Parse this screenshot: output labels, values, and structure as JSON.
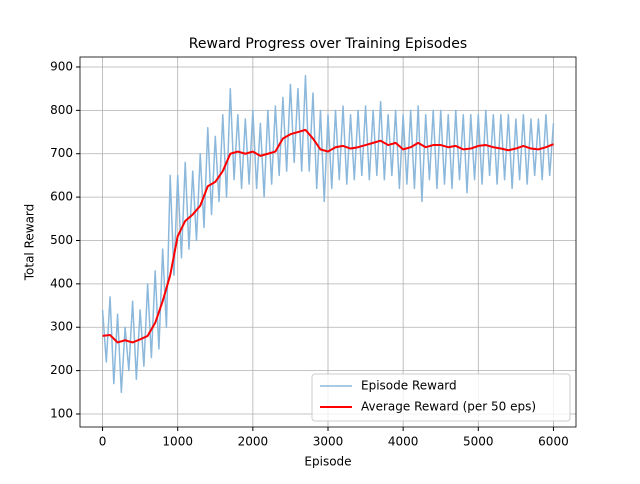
{
  "chart_data": {
    "type": "line",
    "title": "Reward Progress over Training Episodes",
    "x_label": "Episode",
    "y_label": "Total Reward",
    "xlim": [
      -300,
      6300
    ],
    "ylim": [
      70,
      923
    ],
    "xticks": [
      0,
      1000,
      2000,
      3000,
      4000,
      5000,
      6000
    ],
    "yticks": [
      100,
      200,
      300,
      400,
      500,
      600,
      700,
      800,
      900
    ],
    "grid": true,
    "legend": "lower right",
    "series": [
      {
        "name": "Episode Reward",
        "color": "#8cb8dc",
        "width": 1.5,
        "x": [
          0,
          50,
          100,
          150,
          200,
          250,
          300,
          350,
          400,
          450,
          500,
          550,
          600,
          650,
          700,
          750,
          800,
          850,
          900,
          950,
          1000,
          1050,
          1100,
          1150,
          1200,
          1250,
          1300,
          1350,
          1400,
          1450,
          1500,
          1550,
          1600,
          1650,
          1700,
          1750,
          1800,
          1850,
          1900,
          1950,
          2000,
          2050,
          2100,
          2150,
          2200,
          2250,
          2300,
          2350,
          2400,
          2450,
          2500,
          2550,
          2600,
          2650,
          2700,
          2750,
          2800,
          2850,
          2900,
          2950,
          3000,
          3050,
          3100,
          3150,
          3200,
          3250,
          3300,
          3350,
          3400,
          3450,
          3500,
          3550,
          3600,
          3650,
          3700,
          3750,
          3800,
          3850,
          3900,
          3950,
          4000,
          4050,
          4100,
          4150,
          4200,
          4250,
          4300,
          4350,
          4400,
          4450,
          4500,
          4550,
          4600,
          4650,
          4700,
          4750,
          4800,
          4850,
          4900,
          4950,
          5000,
          5050,
          5100,
          5150,
          5200,
          5250,
          5300,
          5350,
          5400,
          5450,
          5500,
          5550,
          5600,
          5650,
          5700,
          5750,
          5800,
          5850,
          5900,
          5950,
          6000
        ],
        "values": [
          340,
          220,
          370,
          170,
          330,
          150,
          300,
          200,
          360,
          180,
          340,
          210,
          400,
          230,
          430,
          250,
          480,
          300,
          650,
          420,
          650,
          460,
          680,
          480,
          660,
          500,
          700,
          530,
          760,
          560,
          740,
          590,
          790,
          600,
          850,
          640,
          790,
          620,
          780,
          630,
          800,
          620,
          770,
          600,
          800,
          630,
          810,
          650,
          830,
          660,
          860,
          680,
          850,
          660,
          880,
          660,
          840,
          620,
          800,
          590,
          790,
          620,
          800,
          640,
          810,
          630,
          790,
          640,
          800,
          650,
          810,
          640,
          800,
          650,
          820,
          640,
          790,
          650,
          800,
          620,
          790,
          630,
          800,
          620,
          810,
          590,
          790,
          640,
          800,
          620,
          800,
          630,
          790,
          620,
          800,
          640,
          790,
          610,
          790,
          640,
          790,
          630,
          800,
          650,
          790,
          630,
          790,
          640,
          790,
          620,
          780,
          640,
          790,
          630,
          780,
          650,
          780,
          640,
          790,
          650,
          770
        ]
      },
      {
        "name": "Average Reward (per 50 eps)",
        "color": "#ff0000",
        "width": 2,
        "x": [
          0,
          100,
          200,
          300,
          400,
          500,
          600,
          700,
          800,
          900,
          1000,
          1100,
          1200,
          1300,
          1400,
          1500,
          1600,
          1700,
          1800,
          1900,
          2000,
          2100,
          2200,
          2300,
          2400,
          2500,
          2600,
          2700,
          2800,
          2900,
          3000,
          3100,
          3200,
          3300,
          3400,
          3500,
          3600,
          3700,
          3800,
          3900,
          4000,
          4100,
          4200,
          4300,
          4400,
          4500,
          4600,
          4700,
          4800,
          4900,
          5000,
          5100,
          5200,
          5300,
          5400,
          5500,
          5600,
          5700,
          5800,
          5900,
          6000
        ],
        "values": [
          280,
          282,
          265,
          270,
          265,
          272,
          280,
          310,
          360,
          420,
          510,
          545,
          560,
          580,
          625,
          635,
          660,
          700,
          705,
          700,
          705,
          695,
          700,
          705,
          735,
          745,
          750,
          755,
          735,
          710,
          705,
          715,
          718,
          712,
          715,
          720,
          725,
          730,
          720,
          725,
          710,
          715,
          725,
          715,
          720,
          720,
          715,
          718,
          710,
          712,
          718,
          720,
          715,
          712,
          708,
          712,
          718,
          712,
          710,
          715,
          722
        ]
      }
    ]
  }
}
